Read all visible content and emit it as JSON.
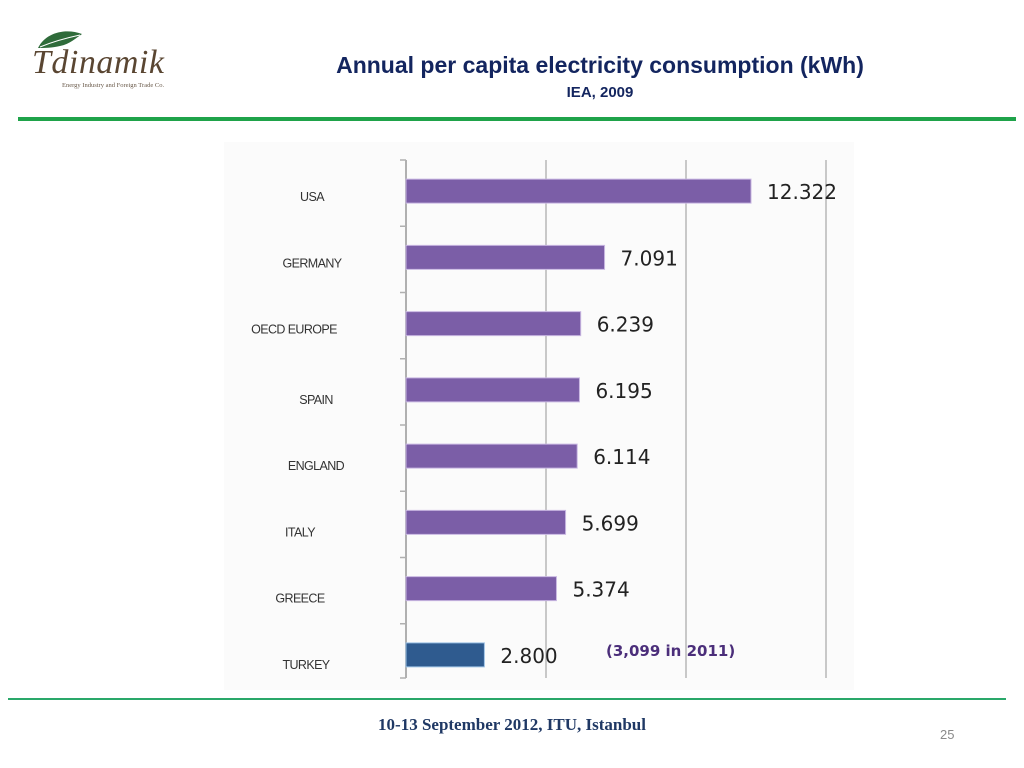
{
  "logo": {
    "name": "Tdinamik",
    "tagline": "Energy Industry and Foreign Trade Co."
  },
  "header": {
    "title": "Annual per capita electricity consumption (kWh)",
    "subtitle": "IEA, 2009"
  },
  "footer": {
    "text": "10-13 September 2012, ITU, Istanbul",
    "page_number": "25"
  },
  "colors": {
    "accent_line": "#1fa34a",
    "title": "#13255f",
    "bar_default": "#7b5ea7",
    "bar_highlight": "#2f5b8f",
    "note": "#4b2e7a"
  },
  "chart_data": {
    "type": "bar",
    "orientation": "horizontal",
    "title": "Annual per capita electricity consumption (kWh)",
    "subtitle": "IEA, 2009",
    "xlabel": "",
    "ylabel": "",
    "xlim": [
      0,
      15
    ],
    "gridlines_at": [
      5,
      10,
      15
    ],
    "grid": true,
    "legend": "none",
    "categories": [
      "USA",
      "GERMANY",
      "OECD EUROPE",
      "SPAIN",
      "ENGLAND",
      "ITALY",
      "GREECE",
      "TURKEY"
    ],
    "values": [
      12.322,
      7.091,
      6.239,
      6.195,
      6.114,
      5.699,
      5.374,
      2.8
    ],
    "data_labels": [
      "12.322",
      "7.091",
      "6.239",
      "6.195",
      "6.114",
      "5.699",
      "5.374",
      "2.800"
    ],
    "highlight": [
      "TURKEY"
    ],
    "unit": "thousand kWh",
    "annotations": [
      {
        "target": "TURKEY",
        "text": "(3,099 in 2011)"
      }
    ]
  }
}
